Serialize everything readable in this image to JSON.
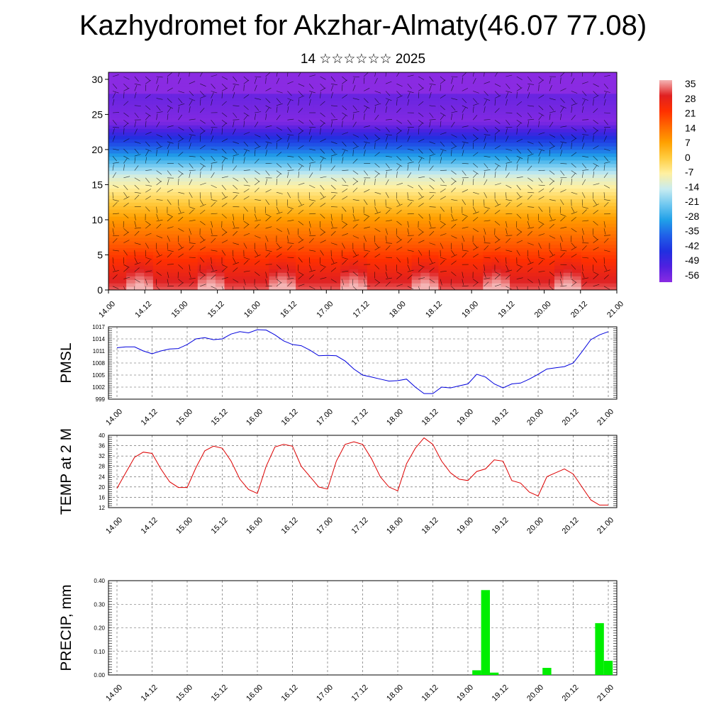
{
  "title": "Kazhydromet for Akzhar-Almaty(46.07 77.08)",
  "subtitle": "14 ☆☆☆☆☆☆ 2025",
  "time_ticks": [
    "14.00",
    "14.12",
    "15.00",
    "15.12",
    "16.00",
    "16.12",
    "17.00",
    "17.12",
    "18.00",
    "18.12",
    "19.00",
    "19.12",
    "20.00",
    "20.12",
    "21.00"
  ],
  "chart_data": [
    {
      "type": "heatmap",
      "name": "upper-air-temperature-wind",
      "ylim": [
        0,
        31
      ],
      "yticks": [
        0,
        5,
        10,
        15,
        20,
        25,
        30
      ],
      "colorbar": {
        "labels": [
          "35",
          "28",
          "21",
          "14",
          "7",
          "0",
          "-7",
          "-14",
          "-21",
          "-28",
          "-35",
          "-42",
          "-49",
          "-56"
        ],
        "colors": [
          "#f4b4b4",
          "#e02020",
          "#ff3000",
          "#ff6a00",
          "#ffa000",
          "#ffcc40",
          "#fff0a0",
          "#c8ecf0",
          "#70c8f0",
          "#20a0e8",
          "#2060e8",
          "#2030e0",
          "#5020e0",
          "#8a2be2"
        ]
      }
    },
    {
      "type": "line",
      "ylabel": "PMSL",
      "ylim": [
        999,
        1017
      ],
      "yticks": [
        999,
        1002,
        1005,
        1008,
        1011,
        1014,
        1017
      ],
      "color": "#0000dd",
      "x": [
        0,
        3,
        6,
        9,
        12,
        15,
        18,
        21,
        24,
        27,
        30,
        33,
        36,
        39,
        42,
        45,
        48,
        51,
        54,
        57,
        60,
        63,
        66,
        69,
        72,
        75,
        78,
        81,
        84,
        87,
        90,
        93,
        96,
        99,
        102,
        105,
        108,
        111,
        114,
        117,
        120,
        123,
        126,
        129,
        132,
        135,
        138,
        141,
        144,
        147,
        150,
        153,
        156,
        159,
        162,
        165,
        168
      ],
      "values": [
        1011.8,
        1012.0,
        1012.0,
        1011.0,
        1010.3,
        1011.0,
        1011.5,
        1011.6,
        1012.6,
        1014.0,
        1014.3,
        1013.8,
        1014.0,
        1015.2,
        1015.8,
        1015.5,
        1016.3,
        1016.2,
        1015.0,
        1013.5,
        1012.6,
        1012.3,
        1011.2,
        1009.8,
        1009.9,
        1009.8,
        1008.5,
        1006.5,
        1005.0,
        1004.5,
        1004.0,
        1003.5,
        1003.6,
        1004.0,
        1002.0,
        1000.4,
        1000.4,
        1002.0,
        1001.8,
        1002.3,
        1002.8,
        1005.2,
        1004.5,
        1002.8,
        1001.8,
        1002.8,
        1003.0,
        1004.0,
        1005.2,
        1006.5,
        1006.8,
        1007.1,
        1008.0,
        1010.8,
        1013.8,
        1015.0,
        1015.8
      ]
    },
    {
      "type": "line",
      "ylabel": "TEMP at 2 M",
      "ylim": [
        12,
        40
      ],
      "yticks": [
        12,
        16,
        20,
        24,
        28,
        32,
        36,
        40
      ],
      "color": "#dd0000",
      "x": [
        0,
        3,
        6,
        9,
        12,
        15,
        18,
        21,
        24,
        27,
        30,
        33,
        36,
        39,
        42,
        45,
        48,
        51,
        54,
        57,
        60,
        63,
        66,
        69,
        72,
        75,
        78,
        81,
        84,
        87,
        90,
        93,
        96,
        99,
        102,
        105,
        108,
        111,
        114,
        117,
        120,
        123,
        126,
        129,
        132,
        135,
        138,
        141,
        144,
        147,
        150,
        153,
        156,
        159,
        162,
        165,
        168
      ],
      "values": [
        19.5,
        25.5,
        31.5,
        33.5,
        33.0,
        27.0,
        22.0,
        19.8,
        19.8,
        27.5,
        34.0,
        35.8,
        35.0,
        30.0,
        23.0,
        19.0,
        17.5,
        28.0,
        35.5,
        36.5,
        35.8,
        28.0,
        24.0,
        20.0,
        19.2,
        30.0,
        36.5,
        37.5,
        36.5,
        31.0,
        24.0,
        20.0,
        18.5,
        29.0,
        35.0,
        39.0,
        36.5,
        30.0,
        25.5,
        23.0,
        22.5,
        26.0,
        27.0,
        30.5,
        30.0,
        22.5,
        21.5,
        18.0,
        16.5,
        24.0,
        25.5,
        27.0,
        25.0,
        20.0,
        15.0,
        13.0,
        13.0
      ]
    },
    {
      "type": "bar",
      "ylabel": "PRECIP, mm",
      "ylim": [
        0,
        0.4
      ],
      "yticks": [
        "0.00",
        "0.10",
        "0.20",
        "0.30",
        "0.40"
      ],
      "color": "#00ee00",
      "x": [
        123,
        126,
        129,
        147,
        165,
        168
      ],
      "values": [
        0.02,
        0.36,
        0.01,
        0.03,
        0.22,
        0.06
      ]
    }
  ]
}
